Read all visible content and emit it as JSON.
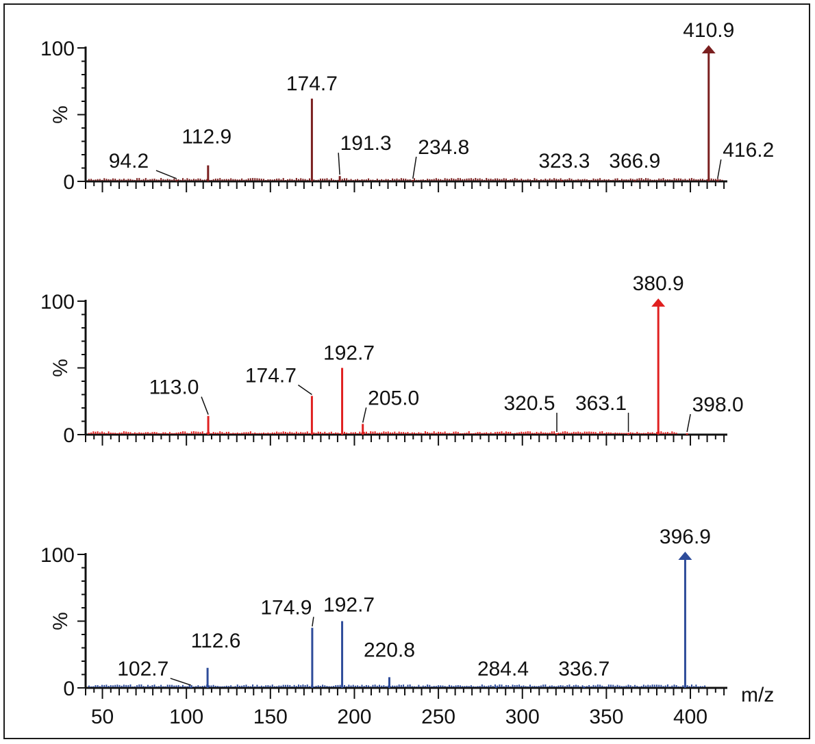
{
  "chart_data": [
    {
      "type": "bar",
      "subtype": "mass-spectrum",
      "ylabel": "%",
      "ylim": [
        0,
        100
      ],
      "yticks": [
        "0",
        "100"
      ],
      "xlim": [
        40,
        422
      ],
      "show_x_tick_labels": false,
      "color": "#7a1f1f",
      "peaks": [
        {
          "mz": 94.2,
          "intensity": 1,
          "label": "94.2"
        },
        {
          "mz": 112.9,
          "intensity": 12,
          "label": "112.9"
        },
        {
          "mz": 174.7,
          "intensity": 62,
          "label": "174.7"
        },
        {
          "mz": 191.3,
          "intensity": 4,
          "label": "191.3"
        },
        {
          "mz": 234.8,
          "intensity": 1,
          "label": "234.8"
        },
        {
          "mz": 323.3,
          "intensity": 1,
          "label": "323.3"
        },
        {
          "mz": 366.9,
          "intensity": 1,
          "label": "366.9"
        },
        {
          "mz": 410.9,
          "intensity": 100,
          "label": "410.9"
        },
        {
          "mz": 416.2,
          "intensity": 1,
          "label": "416.2"
        }
      ]
    },
    {
      "type": "bar",
      "subtype": "mass-spectrum",
      "ylabel": "%",
      "ylim": [
        0,
        100
      ],
      "yticks": [
        "0",
        "100"
      ],
      "xlim": [
        40,
        422
      ],
      "show_x_tick_labels": false,
      "color": "#e02020",
      "peaks": [
        {
          "mz": 113.0,
          "intensity": 14,
          "label": "113.0"
        },
        {
          "mz": 174.7,
          "intensity": 29,
          "label": "174.7"
        },
        {
          "mz": 192.7,
          "intensity": 50,
          "label": "192.7"
        },
        {
          "mz": 205.0,
          "intensity": 8,
          "label": "205.0"
        },
        {
          "mz": 320.5,
          "intensity": 1,
          "label": "320.5"
        },
        {
          "mz": 363.1,
          "intensity": 1,
          "label": "363.1"
        },
        {
          "mz": 380.9,
          "intensity": 100,
          "label": "380.9"
        },
        {
          "mz": 398.0,
          "intensity": 1,
          "label": "398.0"
        }
      ]
    },
    {
      "type": "bar",
      "subtype": "mass-spectrum",
      "ylabel": "%",
      "ylim": [
        0,
        100
      ],
      "yticks": [
        "0",
        "100"
      ],
      "xlim": [
        40,
        422
      ],
      "xlabel": "m/z",
      "xticks": [
        50,
        100,
        150,
        200,
        250,
        300,
        350,
        400
      ],
      "show_x_tick_labels": true,
      "color": "#2e4c9a",
      "peaks": [
        {
          "mz": 102.7,
          "intensity": 1,
          "label": "102.7"
        },
        {
          "mz": 112.6,
          "intensity": 15,
          "label": "112.6"
        },
        {
          "mz": 174.9,
          "intensity": 45,
          "label": "174.9"
        },
        {
          "mz": 192.7,
          "intensity": 50,
          "label": "192.7"
        },
        {
          "mz": 220.8,
          "intensity": 8,
          "label": "220.8"
        },
        {
          "mz": 284.4,
          "intensity": 1,
          "label": "284.4"
        },
        {
          "mz": 336.7,
          "intensity": 1,
          "label": "336.7"
        },
        {
          "mz": 396.9,
          "intensity": 100,
          "label": "396.9"
        }
      ]
    }
  ]
}
